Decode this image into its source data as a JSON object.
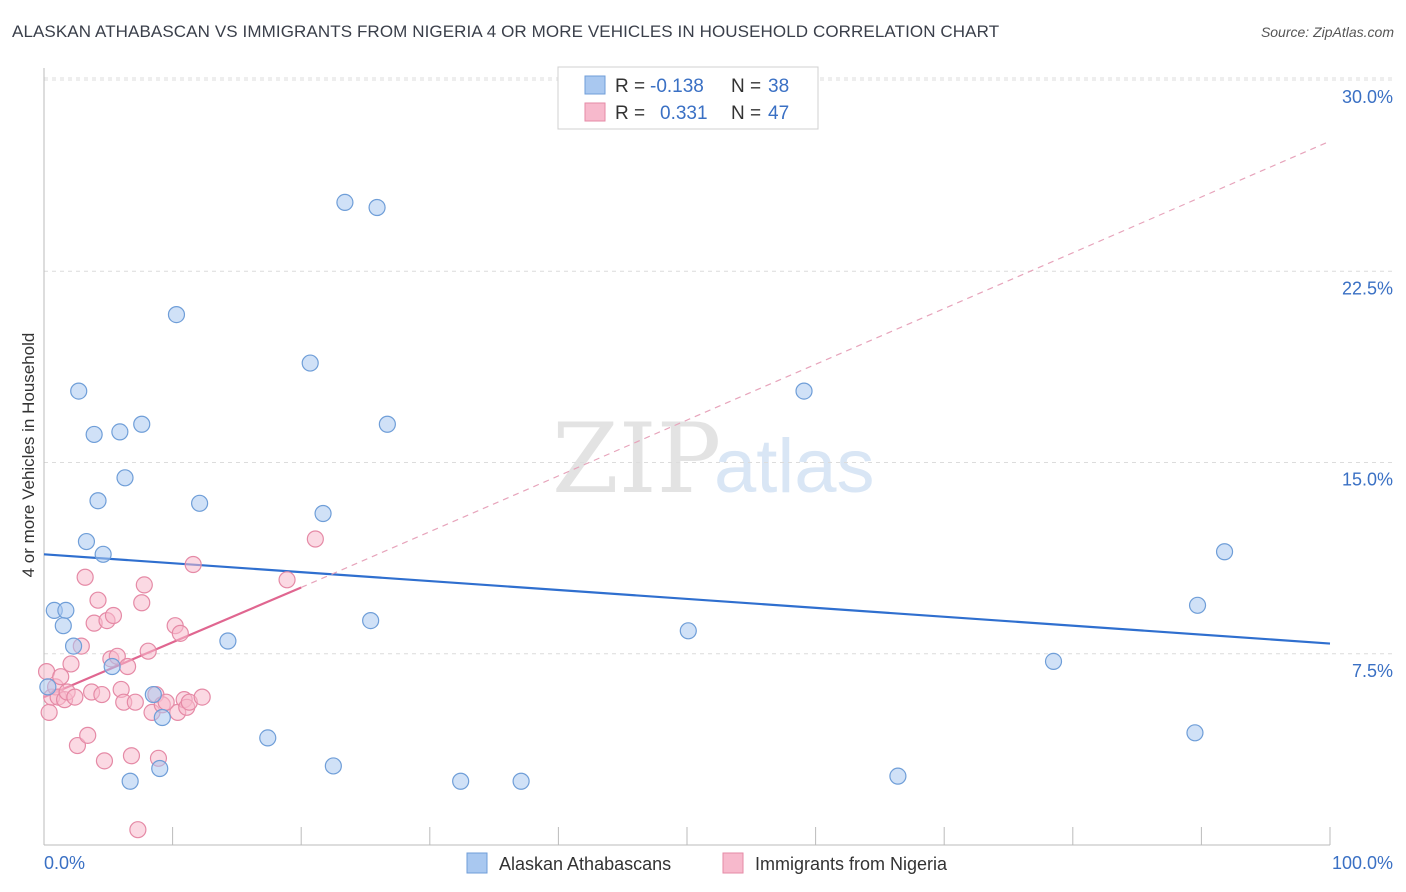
{
  "title": "ALASKAN ATHABASCAN VS IMMIGRANTS FROM NIGERIA 4 OR MORE VEHICLES IN HOUSEHOLD CORRELATION CHART",
  "source": "Source: ZipAtlas.com",
  "watermark": {
    "zip": "ZIP",
    "atlas": "atlas"
  },
  "legend": {
    "r_label": "R =",
    "n_label": "N =",
    "series": [
      {
        "name": "Alaskan Athabascans",
        "r": "-0.138",
        "n": "38",
        "fill": "#a9c8f0",
        "stroke": "#6f9ed8"
      },
      {
        "name": "Immigrants from Nigeria",
        "r": "0.331",
        "n": "47",
        "fill": "#f7b9cc",
        "stroke": "#e58aa6"
      }
    ]
  },
  "colors": {
    "blue_line": "#2f6fcf",
    "pink_line": "#e06690",
    "tick_text": "#3a70c4",
    "grid": "#dcdcdc"
  },
  "chart_data": {
    "type": "scatter",
    "title": "ALASKAN ATHABASCAN VS IMMIGRANTS FROM NIGERIA 4 OR MORE VEHICLES IN HOUSEHOLD CORRELATION CHART",
    "xlabel": "",
    "ylabel": "4 or more Vehicles in Household",
    "xlim": [
      0,
      100
    ],
    "ylim": [
      0,
      30
    ],
    "x_tick_labels": [
      "0.0%",
      "100.0%"
    ],
    "y_ticks": [
      7.5,
      15.0,
      22.5,
      30.0
    ],
    "y_tick_labels": [
      "7.5%",
      "15.0%",
      "22.5%",
      "30.0%"
    ],
    "grid": true,
    "legend_position": "top-center",
    "series": [
      {
        "name": "Alaskan Athabascans",
        "points": [
          [
            0.3,
            6.2
          ],
          [
            0.8,
            9.2
          ],
          [
            1.7,
            9.2
          ],
          [
            1.5,
            8.6
          ],
          [
            2.3,
            7.8
          ],
          [
            2.7,
            17.8
          ],
          [
            3.3,
            11.9
          ],
          [
            3.9,
            16.1
          ],
          [
            4.2,
            13.5
          ],
          [
            4.6,
            11.4
          ],
          [
            5.3,
            7.0
          ],
          [
            5.9,
            16.2
          ],
          [
            6.3,
            14.4
          ],
          [
            6.7,
            2.5
          ],
          [
            7.6,
            16.5
          ],
          [
            8.5,
            5.9
          ],
          [
            9.0,
            3.0
          ],
          [
            9.2,
            5.0
          ],
          [
            10.3,
            20.8
          ],
          [
            12.1,
            13.4
          ],
          [
            14.3,
            8.0
          ],
          [
            17.4,
            4.2
          ],
          [
            20.7,
            18.9
          ],
          [
            21.7,
            13.0
          ],
          [
            22.5,
            3.1
          ],
          [
            23.4,
            25.2
          ],
          [
            25.4,
            8.8
          ],
          [
            25.9,
            25.0
          ],
          [
            26.7,
            16.5
          ],
          [
            32.4,
            2.5
          ],
          [
            37.1,
            2.5
          ],
          [
            50.1,
            8.4
          ],
          [
            59.1,
            17.8
          ],
          [
            66.4,
            2.7
          ],
          [
            78.5,
            7.2
          ],
          [
            89.5,
            4.4
          ],
          [
            89.7,
            9.4
          ],
          [
            91.8,
            11.5
          ]
        ],
        "trend": {
          "x": [
            0,
            100
          ],
          "y": [
            11.4,
            7.9
          ]
        }
      },
      {
        "name": "Immigrants from Nigeria",
        "points": [
          [
            0.2,
            6.8
          ],
          [
            0.4,
            5.2
          ],
          [
            0.6,
            5.8
          ],
          [
            0.9,
            6.2
          ],
          [
            1.1,
            5.8
          ],
          [
            1.3,
            6.6
          ],
          [
            1.6,
            5.7
          ],
          [
            1.8,
            6.0
          ],
          [
            2.1,
            7.1
          ],
          [
            2.4,
            5.8
          ],
          [
            2.6,
            3.9
          ],
          [
            2.9,
            7.8
          ],
          [
            3.2,
            10.5
          ],
          [
            3.4,
            4.3
          ],
          [
            3.7,
            6.0
          ],
          [
            3.9,
            8.7
          ],
          [
            4.2,
            9.6
          ],
          [
            4.5,
            5.9
          ],
          [
            4.7,
            3.3
          ],
          [
            4.9,
            8.8
          ],
          [
            5.2,
            7.3
          ],
          [
            5.4,
            9.0
          ],
          [
            5.7,
            7.4
          ],
          [
            6.0,
            6.1
          ],
          [
            6.2,
            5.6
          ],
          [
            6.5,
            7.0
          ],
          [
            6.8,
            3.5
          ],
          [
            7.1,
            5.6
          ],
          [
            7.3,
            0.6
          ],
          [
            7.6,
            9.5
          ],
          [
            7.8,
            10.2
          ],
          [
            8.1,
            7.6
          ],
          [
            8.4,
            5.2
          ],
          [
            8.7,
            5.9
          ],
          [
            8.9,
            3.4
          ],
          [
            9.2,
            5.5
          ],
          [
            9.5,
            5.6
          ],
          [
            10.2,
            8.6
          ],
          [
            10.4,
            5.2
          ],
          [
            10.6,
            8.3
          ],
          [
            10.9,
            5.7
          ],
          [
            11.1,
            5.4
          ],
          [
            11.3,
            5.6
          ],
          [
            11.6,
            11.0
          ],
          [
            12.3,
            5.8
          ],
          [
            18.9,
            10.4
          ],
          [
            21.1,
            12.0
          ]
        ],
        "trend": {
          "x": [
            0,
            20
          ],
          "y": [
            5.8,
            10.1
          ]
        },
        "trend_extension": {
          "x": [
            20,
            100
          ],
          "y": [
            10.1,
            27.6
          ]
        }
      }
    ]
  }
}
